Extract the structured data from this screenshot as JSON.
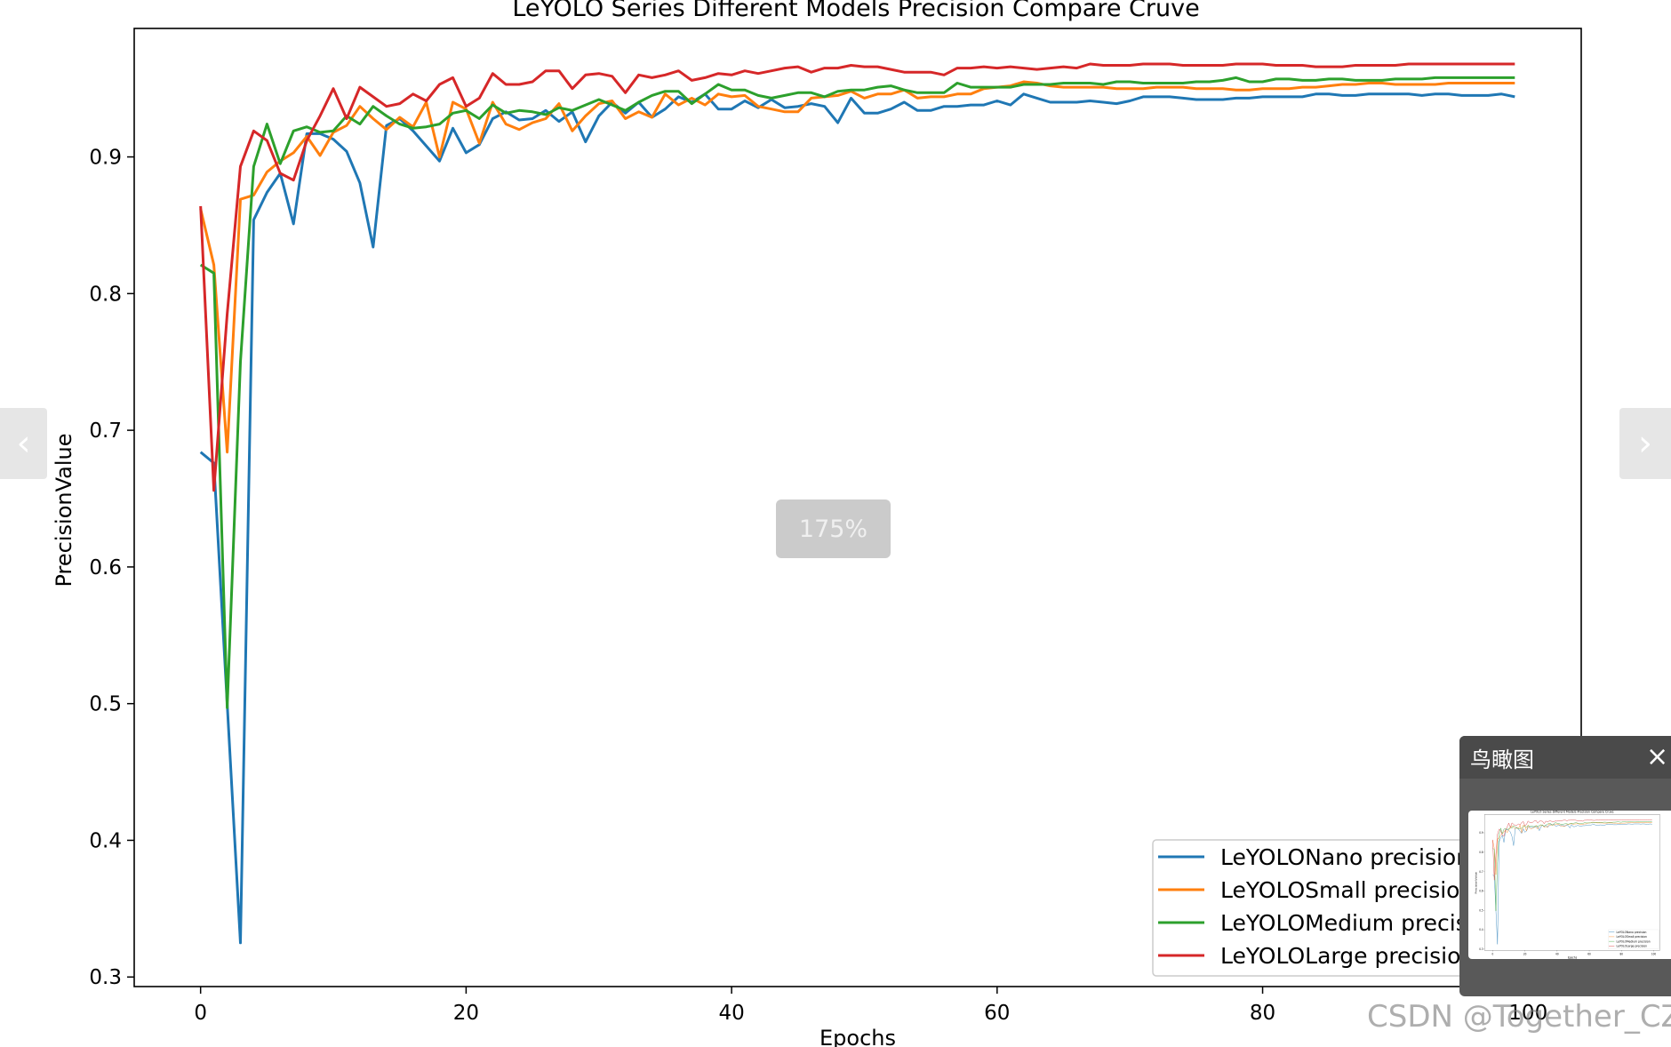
{
  "chart_data": {
    "type": "line",
    "title": "LeYOLO Series Different Models Precision Compare Cruve",
    "xlabel": "Epochs",
    "ylabel": "PrecisionValue",
    "xlim": [
      -5,
      104
    ],
    "ylim": [
      0.293,
      0.994
    ],
    "xticks": [
      0,
      20,
      40,
      60,
      80,
      100
    ],
    "yticks": [
      0.3,
      0.4,
      0.5,
      0.6,
      0.7,
      0.8,
      0.9
    ],
    "grid": false,
    "legend_position": "lower-right",
    "series": [
      {
        "name": "LeYOLONano precision",
        "color": "#1f77b4",
        "values": [
          0.684,
          0.676,
          0.5,
          0.325,
          0.854,
          0.874,
          0.888,
          0.851,
          0.917,
          0.917,
          0.913,
          0.904,
          0.881,
          0.834,
          0.923,
          0.928,
          0.919,
          0.908,
          0.897,
          0.921,
          0.903,
          0.909,
          0.928,
          0.933,
          0.927,
          0.928,
          0.934,
          0.926,
          0.933,
          0.911,
          0.93,
          0.94,
          0.932,
          0.94,
          0.929,
          0.935,
          0.944,
          0.94,
          0.946,
          0.935,
          0.935,
          0.941,
          0.936,
          0.942,
          0.936,
          0.937,
          0.939,
          0.937,
          0.925,
          0.943,
          0.932,
          0.932,
          0.935,
          0.94,
          0.934,
          0.934,
          0.937,
          0.937,
          0.938,
          0.938,
          0.941,
          0.938,
          0.946,
          0.943,
          0.94,
          0.94,
          0.94,
          0.941,
          0.94,
          0.939,
          0.941,
          0.944,
          0.944,
          0.944,
          0.943,
          0.942,
          0.942,
          0.942,
          0.943,
          0.943,
          0.944,
          0.944,
          0.944,
          0.944,
          0.946,
          0.946,
          0.945,
          0.945,
          0.946,
          0.946,
          0.946,
          0.946,
          0.945,
          0.946,
          0.946,
          0.945,
          0.945,
          0.945,
          0.946,
          0.944
        ]
      },
      {
        "name": "LeYOLOSmall precision",
        "color": "#ff7f0e",
        "values": [
          0.862,
          0.821,
          0.684,
          0.869,
          0.872,
          0.889,
          0.897,
          0.903,
          0.915,
          0.901,
          0.918,
          0.923,
          0.937,
          0.928,
          0.92,
          0.929,
          0.922,
          0.94,
          0.9,
          0.94,
          0.935,
          0.91,
          0.94,
          0.924,
          0.92,
          0.925,
          0.928,
          0.939,
          0.919,
          0.93,
          0.939,
          0.941,
          0.928,
          0.933,
          0.929,
          0.946,
          0.938,
          0.943,
          0.938,
          0.946,
          0.944,
          0.945,
          0.937,
          0.935,
          0.933,
          0.933,
          0.943,
          0.944,
          0.945,
          0.948,
          0.943,
          0.946,
          0.946,
          0.949,
          0.943,
          0.944,
          0.944,
          0.946,
          0.946,
          0.95,
          0.951,
          0.952,
          0.955,
          0.954,
          0.952,
          0.951,
          0.951,
          0.951,
          0.951,
          0.95,
          0.95,
          0.95,
          0.951,
          0.951,
          0.951,
          0.95,
          0.95,
          0.95,
          0.949,
          0.949,
          0.95,
          0.95,
          0.95,
          0.951,
          0.951,
          0.952,
          0.953,
          0.953,
          0.954,
          0.954,
          0.953,
          0.953,
          0.953,
          0.953,
          0.954,
          0.954,
          0.954,
          0.954,
          0.954,
          0.954
        ]
      },
      {
        "name": "LeYOLOMedium precision",
        "color": "#2ca02c",
        "values": [
          0.821,
          0.815,
          0.497,
          0.75,
          0.893,
          0.924,
          0.895,
          0.919,
          0.922,
          0.918,
          0.919,
          0.93,
          0.924,
          0.937,
          0.93,
          0.924,
          0.921,
          0.922,
          0.924,
          0.932,
          0.934,
          0.928,
          0.938,
          0.932,
          0.934,
          0.933,
          0.931,
          0.936,
          0.934,
          0.938,
          0.942,
          0.938,
          0.934,
          0.94,
          0.945,
          0.948,
          0.948,
          0.939,
          0.946,
          0.953,
          0.949,
          0.949,
          0.945,
          0.943,
          0.945,
          0.947,
          0.947,
          0.944,
          0.948,
          0.949,
          0.949,
          0.951,
          0.952,
          0.949,
          0.947,
          0.947,
          0.947,
          0.954,
          0.951,
          0.951,
          0.951,
          0.951,
          0.953,
          0.953,
          0.953,
          0.954,
          0.954,
          0.954,
          0.953,
          0.955,
          0.955,
          0.954,
          0.954,
          0.954,
          0.954,
          0.955,
          0.955,
          0.956,
          0.958,
          0.955,
          0.955,
          0.957,
          0.957,
          0.956,
          0.956,
          0.957,
          0.957,
          0.956,
          0.956,
          0.956,
          0.957,
          0.957,
          0.957,
          0.958,
          0.958,
          0.958,
          0.958,
          0.958,
          0.958,
          0.958
        ]
      },
      {
        "name": "LeYOLOLarge precision",
        "color": "#d62728",
        "values": [
          0.864,
          0.656,
          0.785,
          0.893,
          0.919,
          0.912,
          0.888,
          0.883,
          0.912,
          0.93,
          0.95,
          0.928,
          0.951,
          0.944,
          0.937,
          0.939,
          0.946,
          0.941,
          0.953,
          0.958,
          0.937,
          0.943,
          0.961,
          0.953,
          0.953,
          0.955,
          0.963,
          0.963,
          0.95,
          0.96,
          0.961,
          0.959,
          0.947,
          0.96,
          0.958,
          0.96,
          0.963,
          0.956,
          0.958,
          0.961,
          0.96,
          0.963,
          0.961,
          0.963,
          0.965,
          0.966,
          0.962,
          0.965,
          0.965,
          0.967,
          0.966,
          0.966,
          0.964,
          0.962,
          0.962,
          0.962,
          0.96,
          0.965,
          0.965,
          0.966,
          0.965,
          0.966,
          0.965,
          0.964,
          0.965,
          0.966,
          0.965,
          0.968,
          0.967,
          0.967,
          0.967,
          0.968,
          0.968,
          0.968,
          0.967,
          0.967,
          0.967,
          0.967,
          0.968,
          0.968,
          0.968,
          0.967,
          0.967,
          0.967,
          0.966,
          0.966,
          0.966,
          0.967,
          0.967,
          0.967,
          0.967,
          0.968,
          0.968,
          0.968,
          0.968,
          0.968,
          0.968,
          0.968,
          0.968,
          0.968
        ]
      }
    ]
  },
  "viewer": {
    "zoom_label": "175%",
    "prev_arrow": "‹",
    "next_arrow": "›",
    "overview_title": "鸟瞰图",
    "overview_close": "×",
    "watermark": "CSDN @Together_CZ"
  }
}
